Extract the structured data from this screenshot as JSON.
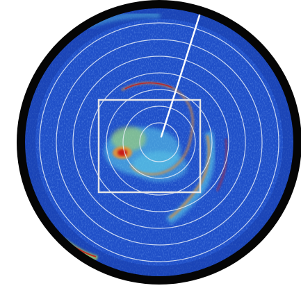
{
  "image": {
    "kind": "weather-radar-ppi-display",
    "colors": {
      "background": "#ffffff",
      "bezel": "#050505",
      "field": "#1f4fc8",
      "field_dark": "#163aa6",
      "range_rings": "#e8eef8",
      "sweep_line": "#ffffff",
      "selection_box": "#e6e6e6",
      "echo_weak": "#5fd0e8",
      "echo_moderate": "#c8e84a",
      "echo_strong": "#e89030",
      "echo_intense": "#c81818"
    },
    "overlays": {
      "range_ring_count": 7,
      "sweep_line_visible": true,
      "selection_box_visible": true
    },
    "echo_features": [
      "spiral-rainband-arc",
      "central-echo-cluster",
      "intense-core-left",
      "outer-rainband-right",
      "lower-left-edge-echo",
      "upper-left-edge-echo"
    ]
  }
}
